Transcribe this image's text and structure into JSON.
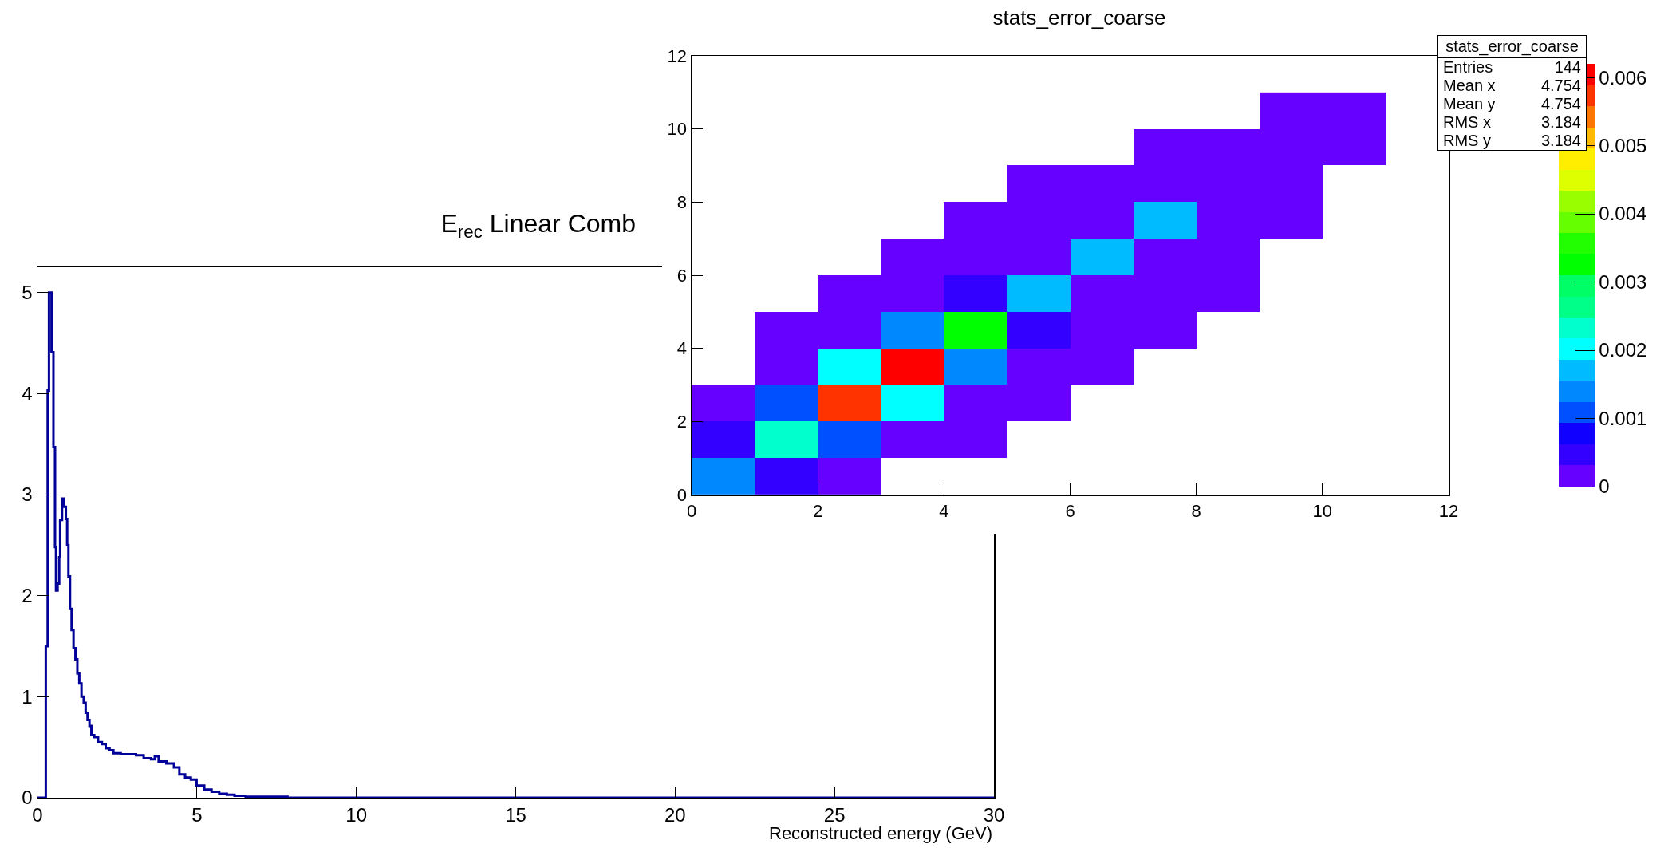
{
  "chart_data": [
    {
      "type": "step",
      "title": "E$_{rec}$ Linear Comb",
      "xlabel": "Reconstructed energy (GeV)",
      "color": "#000099",
      "x": [
        0,
        0.26,
        0.32,
        0.36,
        0.44,
        0.5,
        0.55,
        0.58,
        0.63,
        0.68,
        0.71,
        0.77,
        0.83,
        0.89,
        0.93,
        0.97,
        1.02,
        1.07,
        1.13,
        1.19,
        1.25,
        1.31,
        1.38,
        1.45,
        1.51,
        1.57,
        1.63,
        1.69,
        1.78,
        1.9,
        2.02,
        2.14,
        2.26,
        2.38,
        2.61,
        2.85,
        3.09,
        3.33,
        3.56,
        3.68,
        3.8,
        4.04,
        4.28,
        4.45,
        4.63,
        4.81,
        4.99,
        5.23,
        5.46,
        5.7,
        5.94,
        6.18,
        6.53,
        7.13,
        7.84,
        30
      ],
      "values": [
        0,
        1.5,
        4.03,
        5.0,
        4.41,
        3.47,
        2.48,
        2.05,
        2.12,
        2.38,
        2.75,
        2.96,
        2.88,
        2.76,
        2.5,
        2.19,
        1.87,
        1.66,
        1.48,
        1.37,
        1.23,
        1.13,
        1.0,
        0.94,
        0.84,
        0.77,
        0.71,
        0.62,
        0.6,
        0.55,
        0.53,
        0.49,
        0.47,
        0.44,
        0.43,
        0.43,
        0.42,
        0.39,
        0.38,
        0.41,
        0.36,
        0.34,
        0.3,
        0.23,
        0.2,
        0.18,
        0.12,
        0.08,
        0.06,
        0.04,
        0.03,
        0.02,
        0.01,
        0.01,
        0,
        0
      ],
      "xlim": [
        0,
        30
      ],
      "xticks": [
        0,
        5,
        10,
        15,
        20,
        25,
        30
      ],
      "ylim": [
        0,
        5.25
      ],
      "yticks": [
        0,
        1,
        2,
        3,
        4,
        5
      ],
      "grid": false
    },
    {
      "type": "heatmap",
      "title": "stats_error_coarse",
      "x": [
        0.5,
        1.5,
        2.5,
        3.5,
        4.5,
        5.5,
        6.5,
        7.5,
        8.5,
        9.5,
        10.5,
        11.5
      ],
      "y": [
        10.5,
        9.5,
        8.5,
        7.5,
        6.5,
        5.5,
        4.5,
        3.5,
        2.5,
        1.5,
        0.5
      ],
      "cells": [
        [
          null,
          null,
          null,
          null,
          null,
          null,
          null,
          null,
          null,
          0.0001,
          0.0001,
          null
        ],
        [
          null,
          null,
          null,
          null,
          null,
          null,
          null,
          0.0001,
          0.0001,
          0.0001,
          0.0001,
          null
        ],
        [
          null,
          null,
          null,
          null,
          null,
          0.0001,
          0.0001,
          0.0001,
          0.0001,
          0.0001,
          null,
          null
        ],
        [
          null,
          null,
          null,
          null,
          0.0001,
          0.0001,
          0.0001,
          0.0017,
          0.0001,
          0.0001,
          null,
          null
        ],
        [
          null,
          null,
          null,
          0.0001,
          0.0001,
          0.0001,
          0.0017,
          0.0001,
          0.0001,
          null,
          null,
          null
        ],
        [
          null,
          null,
          0.0001,
          0.0001,
          0.0005,
          0.0017,
          0.0001,
          0.0001,
          0.0001,
          null,
          null,
          null
        ],
        [
          null,
          0.0001,
          0.0001,
          0.0014,
          0.0033,
          0.0005,
          0.0001,
          0.0001,
          null,
          null,
          null,
          null
        ],
        [
          null,
          0.0001,
          0.002,
          0.006,
          0.0014,
          0.0001,
          0.0001,
          null,
          null,
          null,
          null,
          null
        ],
        [
          0.0001,
          0.0011,
          0.0057,
          0.002,
          0.0001,
          0.0001,
          null,
          null,
          null,
          null,
          null,
          null
        ],
        [
          0.0005,
          0.0023,
          0.0011,
          0.0001,
          0.0001,
          null,
          null,
          null,
          null,
          null,
          null,
          null
        ],
        [
          0.0014,
          0.0005,
          0.0001,
          null,
          null,
          null,
          null,
          null,
          null,
          null,
          null,
          null
        ]
      ],
      "xlim": [
        0,
        12
      ],
      "xticks": [
        0,
        2,
        4,
        6,
        8,
        10,
        12
      ],
      "ylim": [
        0,
        12
      ],
      "yticks": [
        0,
        2,
        4,
        6,
        8,
        10,
        12
      ],
      "clim": [
        0,
        0.0062
      ],
      "cticks": [
        0,
        0.001,
        0.002,
        0.003,
        0.004,
        0.005,
        0.006
      ],
      "grid": false,
      "annotations": [
        "stats_error_coarse",
        "Entries",
        "144",
        "Mean x",
        "4.754",
        "Mean y",
        "4.754",
        "RMS x",
        "3.184",
        "RMS y",
        "3.184"
      ]
    }
  ]
}
